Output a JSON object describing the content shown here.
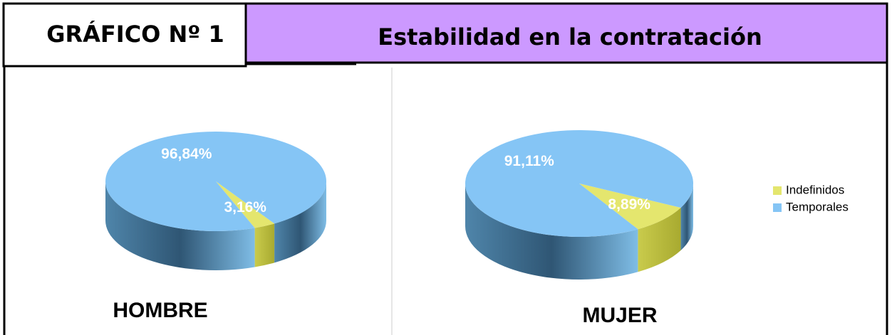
{
  "header": {
    "number": "GRÁFICO Nº 1",
    "title": "Estabilidad en la contratación"
  },
  "chart_data": [
    {
      "type": "pie",
      "title": "HOMBRE",
      "categories": [
        "Indefinidos",
        "Temporales"
      ],
      "values": [
        3.16,
        96.84
      ],
      "value_labels": [
        "3,16%",
        "96,84%"
      ],
      "colors": [
        "#e4e66e",
        "#85c5f5"
      ]
    },
    {
      "type": "pie",
      "title": "MUJER",
      "categories": [
        "Indefinidos",
        "Temporales"
      ],
      "values": [
        8.89,
        91.11
      ],
      "value_labels": [
        "8,89%",
        "91,11%"
      ],
      "colors": [
        "#e4e66e",
        "#85c5f5"
      ],
      "legend": "right"
    }
  ]
}
